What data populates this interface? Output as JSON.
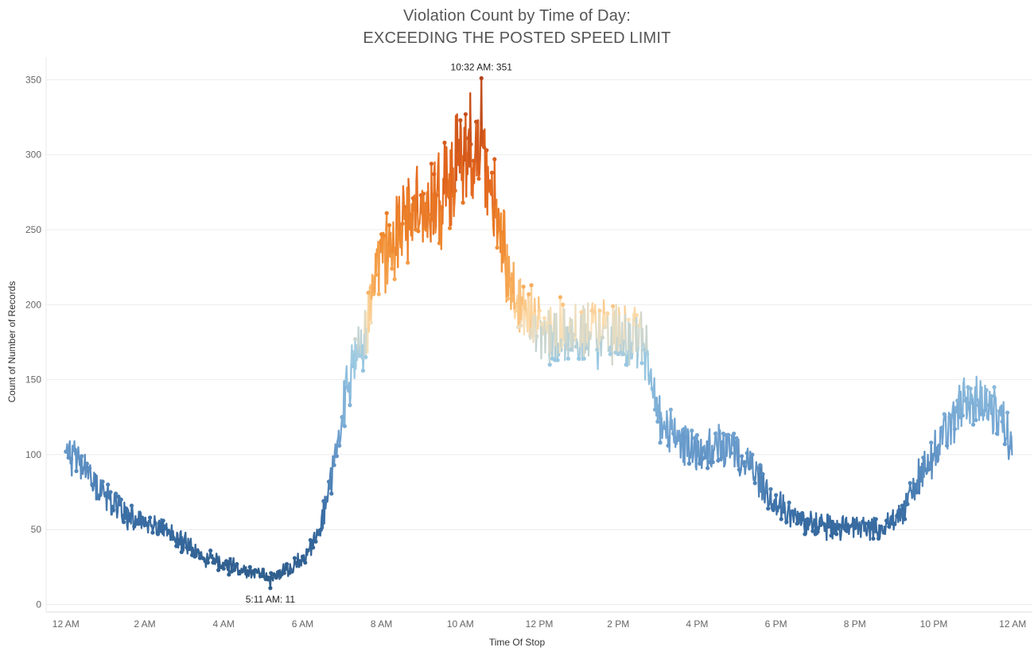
{
  "chart_data": {
    "type": "line",
    "title": "Violation Count by Time of Day:",
    "subtitle": "EXCEEDING THE POSTED SPEED LIMIT",
    "xlabel": "Time Of Stop",
    "ylabel": "Count of Number of Records",
    "x_ticks": [
      {
        "minute": 0,
        "label": "12 AM"
      },
      {
        "minute": 120,
        "label": "2 AM"
      },
      {
        "minute": 240,
        "label": "4 AM"
      },
      {
        "minute": 360,
        "label": "6 AM"
      },
      {
        "minute": 480,
        "label": "8 AM"
      },
      {
        "minute": 600,
        "label": "10 AM"
      },
      {
        "minute": 720,
        "label": "12 PM"
      },
      {
        "minute": 840,
        "label": "2 PM"
      },
      {
        "minute": 960,
        "label": "4 PM"
      },
      {
        "minute": 1080,
        "label": "6 PM"
      },
      {
        "minute": 1200,
        "label": "8 PM"
      },
      {
        "minute": 1320,
        "label": "10 PM"
      },
      {
        "minute": 1440,
        "label": "12 AM"
      }
    ],
    "y_ticks": [
      0,
      50,
      100,
      150,
      200,
      250,
      300,
      350
    ],
    "xlim": [
      -30,
      1470
    ],
    "ylim": [
      -5,
      365
    ],
    "grid": true,
    "color_scale": {
      "low": "#2a5783",
      "mid": "#fde2b8",
      "high": "#b3431c",
      "midpoint": 190
    },
    "trend_minutes": [
      0,
      20,
      45,
      90,
      150,
      210,
      270,
      310,
      330,
      360,
      390,
      410,
      430,
      455,
      480,
      510,
      540,
      570,
      600,
      632,
      660,
      690,
      720,
      760,
      800,
      840,
      880,
      900,
      930,
      960,
      1000,
      1040,
      1080,
      1120,
      1160,
      1200,
      1240,
      1270,
      1290,
      1320,
      1350,
      1380,
      1410,
      1439
    ],
    "trend_values": [
      105,
      95,
      80,
      60,
      50,
      32,
      22,
      20,
      22,
      30,
      55,
      100,
      150,
      180,
      225,
      250,
      270,
      270,
      300,
      310,
      245,
      200,
      185,
      180,
      182,
      180,
      175,
      125,
      110,
      100,
      105,
      95,
      65,
      55,
      52,
      52,
      50,
      60,
      80,
      100,
      125,
      140,
      130,
      110
    ],
    "noise_amplitude": 0.12,
    "series": [
      {
        "name": "",
        "x_label": "Time Of Stop",
        "y_label": "Count of Number of Records"
      }
    ],
    "annotations": [
      {
        "minute": 632,
        "value": 351,
        "label": "10:32 AM: 351",
        "position": "above"
      },
      {
        "minute": 311,
        "value": 11,
        "label": "5:11 AM: 11",
        "position": "below"
      }
    ]
  }
}
